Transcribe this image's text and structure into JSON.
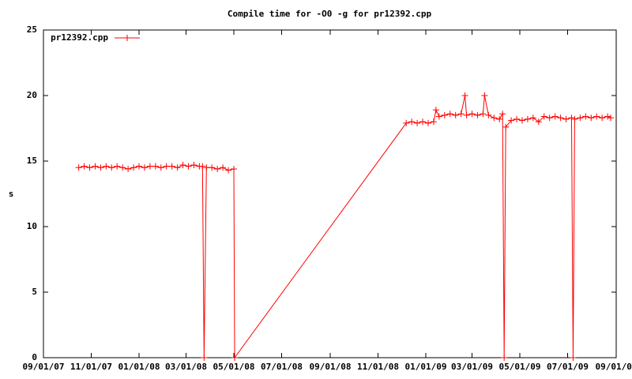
{
  "chart_data": {
    "type": "line",
    "title": "Compile time for -O0 -g for pr12392.cpp",
    "y_label": "s",
    "x": [
      "2007-10-16",
      "2007-10-23",
      "2007-10-30",
      "2007-11-06",
      "2007-11-13",
      "2007-11-20",
      "2007-11-27",
      "2007-12-04",
      "2007-12-11",
      "2007-12-18",
      "2007-12-25",
      "2008-01-01",
      "2008-01-08",
      "2008-01-15",
      "2008-01-22",
      "2008-01-29",
      "2008-02-05",
      "2008-02-12",
      "2008-02-19",
      "2008-02-26",
      "2008-03-04",
      "2008-03-11",
      "2008-03-18",
      "2008-03-22",
      "2008-03-24",
      "2008-03-27",
      "2008-04-03",
      "2008-04-10",
      "2008-04-17",
      "2008-04-24",
      "2008-05-01",
      "2008-05-02",
      "2008-12-07",
      "2008-12-14",
      "2008-12-21",
      "2008-12-28",
      "2009-01-04",
      "2009-01-11",
      "2009-01-14",
      "2009-01-18",
      "2009-01-25",
      "2009-02-01",
      "2009-02-08",
      "2009-02-15",
      "2009-02-20",
      "2009-02-22",
      "2009-03-01",
      "2009-03-08",
      "2009-03-15",
      "2009-03-17",
      "2009-03-22",
      "2009-03-29",
      "2009-04-05",
      "2009-04-09",
      "2009-04-11",
      "2009-04-13",
      "2009-04-20",
      "2009-04-27",
      "2009-05-04",
      "2009-05-11",
      "2009-05-18",
      "2009-05-25",
      "2009-06-01",
      "2009-06-08",
      "2009-06-15",
      "2009-06-22",
      "2009-06-29",
      "2009-07-06",
      "2009-07-08",
      "2009-07-10",
      "2009-07-17",
      "2009-07-24",
      "2009-07-31",
      "2009-08-07",
      "2009-08-14",
      "2009-08-21",
      "2009-08-25"
    ],
    "series": [
      {
        "name": "pr12392.cpp",
        "color": "#ff0000",
        "values": [
          14.5,
          14.6,
          14.5,
          14.6,
          14.5,
          14.6,
          14.5,
          14.6,
          14.5,
          14.4,
          14.5,
          14.6,
          14.5,
          14.6,
          14.6,
          14.5,
          14.6,
          14.6,
          14.5,
          14.7,
          14.6,
          14.7,
          14.6,
          14.6,
          0,
          14.5,
          14.5,
          14.4,
          14.5,
          14.3,
          14.4,
          0,
          17.9,
          18.0,
          17.9,
          18.0,
          17.9,
          18.0,
          18.9,
          18.4,
          18.5,
          18.6,
          18.5,
          18.6,
          20.0,
          18.5,
          18.6,
          18.5,
          18.6,
          20.0,
          18.5,
          18.3,
          18.2,
          18.6,
          0,
          17.6,
          18.1,
          18.2,
          18.1,
          18.2,
          18.3,
          18.0,
          18.4,
          18.3,
          18.4,
          18.3,
          18.2,
          18.3,
          0,
          18.2,
          18.3,
          18.4,
          18.3,
          18.4,
          18.3,
          18.4,
          18.3
        ]
      }
    ],
    "xlim": [
      "2007-09-01",
      "2009-09-01"
    ],
    "xticks": [
      {
        "value": "2007-09-01",
        "label": "09/01/07"
      },
      {
        "value": "2007-11-01",
        "label": "11/01/07"
      },
      {
        "value": "2008-01-01",
        "label": "01/01/08"
      },
      {
        "value": "2008-03-01",
        "label": "03/01/08"
      },
      {
        "value": "2008-05-01",
        "label": "05/01/08"
      },
      {
        "value": "2008-07-01",
        "label": "07/01/08"
      },
      {
        "value": "2008-09-01",
        "label": "09/01/08"
      },
      {
        "value": "2008-11-01",
        "label": "11/01/08"
      },
      {
        "value": "2009-01-01",
        "label": "01/01/09"
      },
      {
        "value": "2009-03-01",
        "label": "03/01/09"
      },
      {
        "value": "2009-05-01",
        "label": "05/01/09"
      },
      {
        "value": "2009-07-01",
        "label": "07/01/09"
      },
      {
        "value": "2009-09-01",
        "label": "09/01/09"
      }
    ],
    "ylim": [
      0,
      25
    ],
    "yticks": [
      0,
      5,
      10,
      15,
      20,
      25
    ],
    "legend": "top-left"
  }
}
